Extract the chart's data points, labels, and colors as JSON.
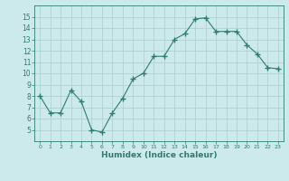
{
  "x": [
    0,
    1,
    2,
    3,
    4,
    5,
    6,
    7,
    8,
    9,
    10,
    11,
    12,
    13,
    14,
    15,
    16,
    17,
    18,
    19,
    20,
    21,
    22,
    23
  ],
  "y": [
    8.0,
    6.5,
    6.5,
    8.5,
    7.5,
    5.0,
    4.8,
    6.5,
    7.8,
    9.5,
    10.0,
    11.5,
    11.5,
    13.0,
    13.5,
    14.8,
    14.9,
    13.7,
    13.7,
    13.7,
    12.5,
    11.7,
    10.5,
    10.4
  ],
  "ylim": [
    4,
    16
  ],
  "yticks": [
    5,
    6,
    7,
    8,
    9,
    10,
    11,
    12,
    13,
    14,
    15
  ],
  "xtick_labels": [
    "0",
    "1",
    "2",
    "3",
    "4",
    "5",
    "6",
    "7",
    "8",
    "9",
    "10",
    "11",
    "12",
    "13",
    "14",
    "15",
    "16",
    "17",
    "18",
    "19",
    "20",
    "21",
    "22",
    "23"
  ],
  "xlabel": "Humidex (Indice chaleur)",
  "line_color": "#2e7d6e",
  "marker": "+",
  "bg_color": "#cce9ec",
  "grid_color": "#b0d0d4"
}
